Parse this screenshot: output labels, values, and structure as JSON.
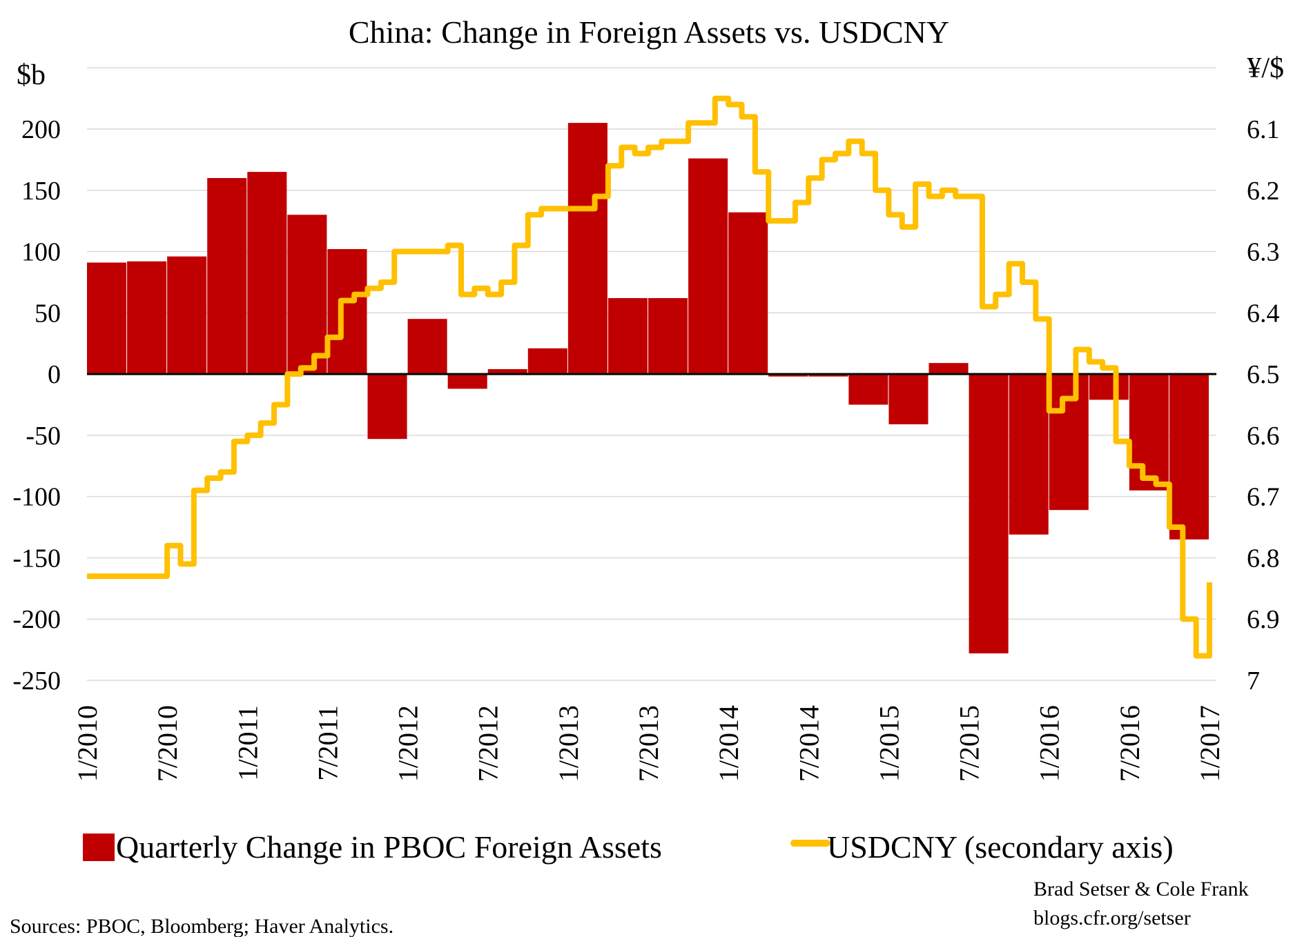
{
  "chart_data": {
    "type": "bar+line",
    "title": "China: Change in Foreign Assets vs. USDCNY",
    "ylabel": "$b",
    "y2label": "¥/$",
    "ylim": [
      -250,
      250
    ],
    "yticks": [
      200,
      150,
      100,
      50,
      0,
      -50,
      -100,
      -150,
      -200,
      -250
    ],
    "y2lim": [
      7.0,
      6.0
    ],
    "y2ticks": [
      "6.1",
      "6.2",
      "6.3",
      "6.4",
      "6.5",
      "6.6",
      "6.7",
      "6.8",
      "6.9",
      "7"
    ],
    "y2_inverted": true,
    "xticks": [
      "1/2010",
      "7/2010",
      "1/2011",
      "7/2011",
      "1/2012",
      "7/2012",
      "1/2013",
      "7/2013",
      "1/2014",
      "7/2014",
      "1/2015",
      "7/2015",
      "1/2016",
      "7/2016",
      "1/2017"
    ],
    "grid": true,
    "legend_position": "bottom",
    "series": [
      {
        "name": "Quarterly Change in PBOC Foreign Assets",
        "type": "bar",
        "color": "#c00000",
        "x": [
          "2010Q1",
          "2010Q2",
          "2010Q3",
          "2010Q4",
          "2011Q1",
          "2011Q2",
          "2011Q3",
          "2011Q4",
          "2012Q1",
          "2012Q2",
          "2012Q3",
          "2012Q4",
          "2013Q1",
          "2013Q2",
          "2013Q3",
          "2013Q4",
          "2014Q1",
          "2014Q2",
          "2014Q3",
          "2014Q4",
          "2015Q1",
          "2015Q2",
          "2015Q3",
          "2015Q4",
          "2016Q1",
          "2016Q2",
          "2016Q3",
          "2016Q4"
        ],
        "values": [
          91,
          92,
          96,
          160,
          165,
          130,
          102,
          -53,
          45,
          -12,
          4,
          21,
          205,
          62,
          62,
          176,
          132,
          -2,
          -2,
          -25,
          -41,
          9,
          -228,
          -131,
          -111,
          -21,
          -95,
          -135
        ]
      },
      {
        "name": "USDCNY (secondary axis)",
        "type": "line",
        "axis": "secondary",
        "color": "#ffc000",
        "x": [
          "2010-01",
          "2010-02",
          "2010-03",
          "2010-04",
          "2010-05",
          "2010-06",
          "2010-07",
          "2010-08",
          "2010-09",
          "2010-10",
          "2010-11",
          "2010-12",
          "2011-01",
          "2011-02",
          "2011-03",
          "2011-04",
          "2011-05",
          "2011-06",
          "2011-07",
          "2011-08",
          "2011-09",
          "2011-10",
          "2011-11",
          "2011-12",
          "2012-01",
          "2012-02",
          "2012-03",
          "2012-04",
          "2012-05",
          "2012-06",
          "2012-07",
          "2012-08",
          "2012-09",
          "2012-10",
          "2012-11",
          "2012-12",
          "2013-01",
          "2013-02",
          "2013-03",
          "2013-04",
          "2013-05",
          "2013-06",
          "2013-07",
          "2013-08",
          "2013-09",
          "2013-10",
          "2013-11",
          "2013-12",
          "2014-01",
          "2014-02",
          "2014-03",
          "2014-04",
          "2014-05",
          "2014-06",
          "2014-07",
          "2014-08",
          "2014-09",
          "2014-10",
          "2014-11",
          "2014-12",
          "2015-01",
          "2015-02",
          "2015-03",
          "2015-04",
          "2015-05",
          "2015-06",
          "2015-07",
          "2015-08",
          "2015-09",
          "2015-10",
          "2015-11",
          "2015-12",
          "2016-01",
          "2016-02",
          "2016-03",
          "2016-04",
          "2016-05",
          "2016-06",
          "2016-07",
          "2016-08",
          "2016-09",
          "2016-10",
          "2016-11",
          "2016-12",
          "2017-01"
        ],
        "values": [
          6.83,
          6.83,
          6.83,
          6.83,
          6.83,
          6.83,
          6.78,
          6.81,
          6.69,
          6.67,
          6.66,
          6.61,
          6.6,
          6.58,
          6.55,
          6.5,
          6.49,
          6.47,
          6.44,
          6.38,
          6.37,
          6.36,
          6.35,
          6.3,
          6.3,
          6.3,
          6.3,
          6.29,
          6.37,
          6.36,
          6.37,
          6.35,
          6.29,
          6.24,
          6.23,
          6.23,
          6.23,
          6.23,
          6.21,
          6.16,
          6.13,
          6.14,
          6.13,
          6.12,
          6.12,
          6.09,
          6.09,
          6.05,
          6.06,
          6.08,
          6.17,
          6.25,
          6.25,
          6.22,
          6.18,
          6.15,
          6.14,
          6.12,
          6.14,
          6.2,
          6.24,
          6.26,
          6.19,
          6.21,
          6.2,
          6.21,
          6.21,
          6.39,
          6.37,
          6.32,
          6.35,
          6.41,
          6.56,
          6.54,
          6.46,
          6.48,
          6.49,
          6.61,
          6.65,
          6.67,
          6.68,
          6.75,
          6.9,
          6.96,
          6.84
        ]
      }
    ]
  },
  "legend": {
    "bar_label": "Quarterly Change in PBOC Foreign Assets",
    "line_label": "USDCNY (secondary axis)"
  },
  "footer": {
    "authors": "Brad Setser & Cole Frank",
    "site": "blogs.cfr.org/setser",
    "sources": "Sources: PBOC, Bloomberg; Haver Analytics."
  }
}
